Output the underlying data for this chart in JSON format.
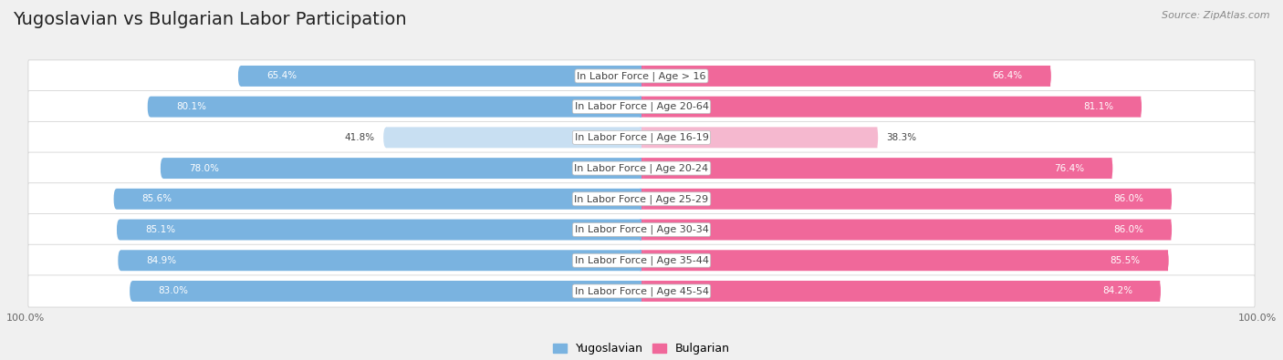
{
  "title": "Yugoslavian vs Bulgarian Labor Participation",
  "source": "Source: ZipAtlas.com",
  "categories": [
    "In Labor Force | Age > 16",
    "In Labor Force | Age 20-64",
    "In Labor Force | Age 16-19",
    "In Labor Force | Age 20-24",
    "In Labor Force | Age 25-29",
    "In Labor Force | Age 30-34",
    "In Labor Force | Age 35-44",
    "In Labor Force | Age 45-54"
  ],
  "yugoslavian_values": [
    65.4,
    80.1,
    41.8,
    78.0,
    85.6,
    85.1,
    84.9,
    83.0
  ],
  "bulgarian_values": [
    66.4,
    81.1,
    38.3,
    76.4,
    86.0,
    86.0,
    85.5,
    84.2
  ],
  "yugo_color_full": "#7ab3e0",
  "yugo_color_light": "#c8dff2",
  "bulg_color_full": "#f0689a",
  "bulg_color_light": "#f5b8cf",
  "bg_color": "#f0f0f0",
  "bar_height": 0.68,
  "max_value": 100.0,
  "title_fontsize": 14,
  "label_fontsize": 8,
  "value_fontsize": 7.5,
  "legend_fontsize": 9,
  "threshold": 50.0
}
